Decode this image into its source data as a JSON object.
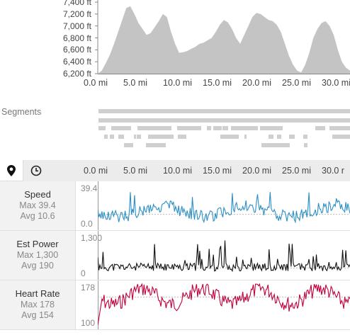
{
  "elevation": {
    "y_ticks": [
      "7,400 ft",
      "7,200 ft",
      "7,000 ft",
      "6,800 ft",
      "6,600 ft",
      "6,400 ft",
      "6,200 ft"
    ],
    "x_ticks": [
      "0.0 mi",
      "5.0 mi",
      "10.0 mi",
      "15.0 mi",
      "20.0 mi",
      "25.0 mi",
      "30.0 mi"
    ],
    "fill_color": "#c4c4c4",
    "profile_ft": [
      6200,
      6250,
      6380,
      6520,
      6700,
      6900,
      7100,
      7300,
      7330,
      7200,
      7050,
      6950,
      6850,
      6880,
      6980,
      7080,
      7200,
      7150,
      6900,
      6700,
      6550,
      6560,
      6580,
      6620,
      6650,
      6700,
      6720,
      6760,
      6800,
      6900,
      7020,
      7100,
      7060,
      6950,
      6800,
      6700,
      6850,
      7000,
      7150,
      7220,
      7200,
      7150,
      7100,
      7080,
      7020,
      6900,
      6700,
      6500,
      6350,
      6250,
      6220,
      6350,
      6550,
      6800,
      6950,
      7050,
      7080,
      7000,
      6850,
      6600,
      6400,
      6300,
      6250
    ]
  },
  "segments": {
    "label": "Segments",
    "color": "#cfcfcf"
  },
  "toolbar": {
    "map_icon": "map-pin-icon",
    "time_icon": "clock-icon",
    "x_ticks": [
      "0.0 mi",
      "5.0 mi",
      "10.0 mi",
      "15.0 mi",
      "20.0 mi",
      "25.0 mi",
      "30.0 r"
    ]
  },
  "streams": [
    {
      "title": "Speed",
      "max_text": "Max 39.4",
      "avg_text": "Avg 10.6",
      "top_label": "39.4",
      "bottom_label": "0.0",
      "color": "#2a8fc5",
      "seed": 3,
      "base": 0.62,
      "amp": 0.28,
      "avg_y": 0.7
    },
    {
      "title": "Est Power",
      "max_text": "Max 1,300",
      "avg_text": "Avg 190",
      "top_label": "1,300",
      "bottom_label": "0",
      "color": "#111111",
      "seed": 11,
      "base": 0.85,
      "amp": 0.55,
      "avg_y": 0.8
    },
    {
      "title": "Heart Rate",
      "max_text": "Max 178",
      "avg_text": "Avg 154",
      "top_label": "178",
      "bottom_label": "100",
      "color": "#c0003a",
      "seed": 7,
      "base": 0.3,
      "amp": 0.35,
      "avg_y": 0.3
    }
  ]
}
